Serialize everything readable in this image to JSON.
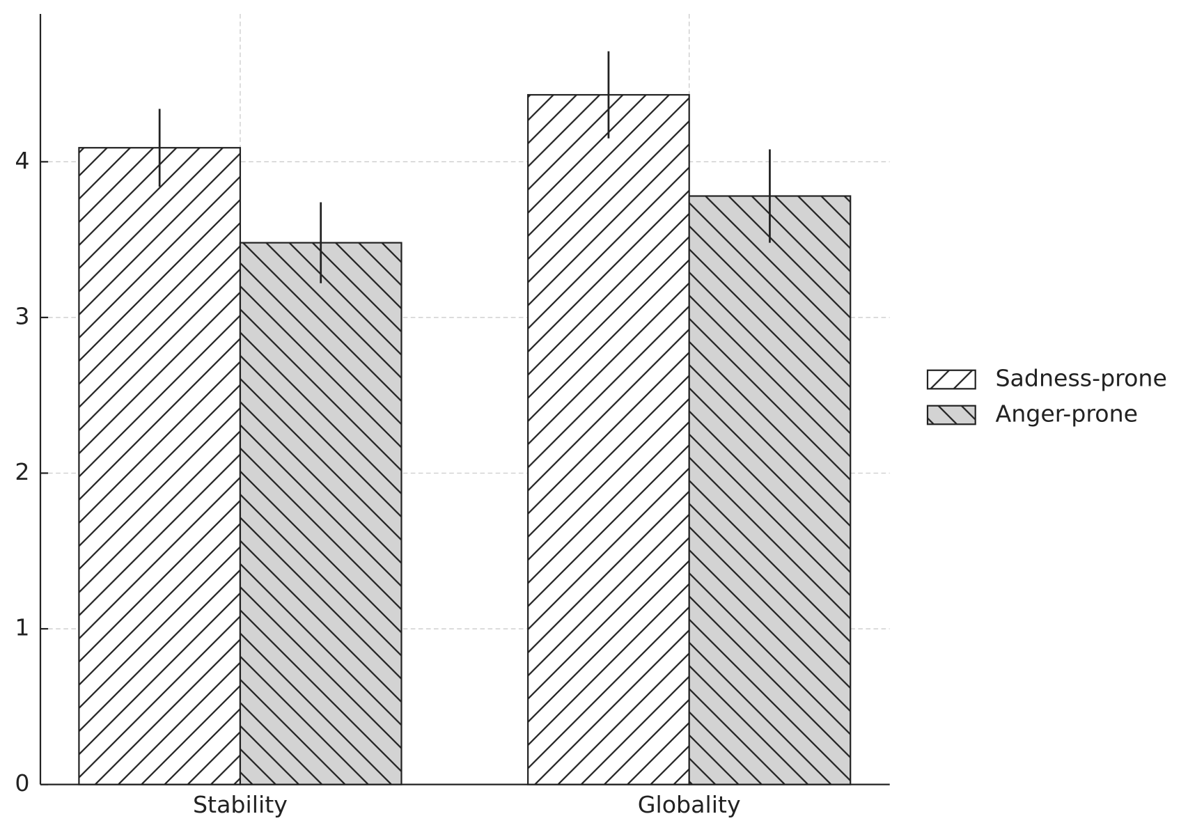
{
  "chart_data": {
    "type": "bar",
    "categories": [
      "Stability",
      "Globality"
    ],
    "series": [
      {
        "name": "Sadness-prone",
        "color": "#ffffff",
        "hatch": "/",
        "values": [
          4.09,
          4.43
        ],
        "errors": [
          0.25,
          0.28
        ]
      },
      {
        "name": "Anger-prone",
        "color": "#d3d3d3",
        "hatch": "\\",
        "values": [
          3.48,
          3.78
        ],
        "errors": [
          0.26,
          0.3
        ]
      }
    ],
    "ylim": [
      0,
      4.95
    ],
    "yticks": [
      0,
      1,
      2,
      3,
      4
    ],
    "grid": true,
    "legend": "right"
  }
}
